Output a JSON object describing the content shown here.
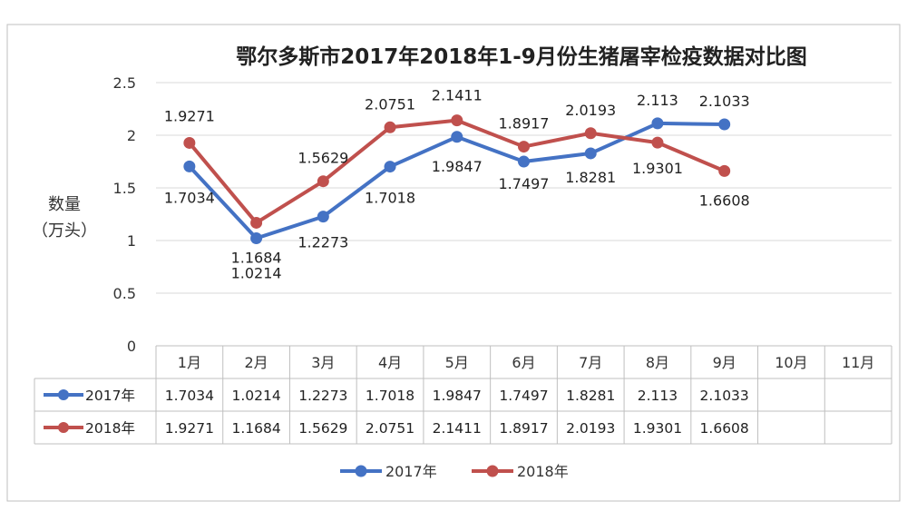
{
  "chart_data": {
    "type": "line",
    "title": "鄂尔多斯市2017年2018年1-9月份生猪屠宰检疫数据对比图",
    "ylabel": [
      "数量",
      "（万头）"
    ],
    "ylim": [
      0,
      2.5
    ],
    "yticks": [
      "0",
      "0.5",
      "1",
      "1.5",
      "2",
      "2.5"
    ],
    "categories": [
      "1月",
      "2月",
      "3月",
      "4月",
      "5月",
      "6月",
      "7月",
      "8月",
      "9月",
      "10月",
      "11月"
    ],
    "grid": true,
    "legend_position": "bottom",
    "series": [
      {
        "name": "2017年",
        "color": "#4472C4",
        "values": [
          1.7034,
          1.0214,
          1.2273,
          1.7018,
          1.9847,
          1.7497,
          1.8281,
          2.113,
          2.1033,
          null,
          null
        ],
        "labels": [
          "1.7034",
          "1.0214",
          "1.2273",
          "1.7018",
          "1.9847",
          "1.7497",
          "1.8281",
          "2.113",
          "2.1033",
          "",
          ""
        ]
      },
      {
        "name": "2018年",
        "color": "#C0504D",
        "values": [
          1.9271,
          1.1684,
          1.5629,
          2.0751,
          2.1411,
          1.8917,
          2.0193,
          1.9301,
          1.6608,
          null,
          null
        ],
        "labels": [
          "1.9271",
          "1.1684",
          "1.5629",
          "2.0751",
          "2.1411",
          "1.8917",
          "2.0193",
          "1.9301",
          "1.6608",
          "",
          ""
        ]
      }
    ]
  }
}
